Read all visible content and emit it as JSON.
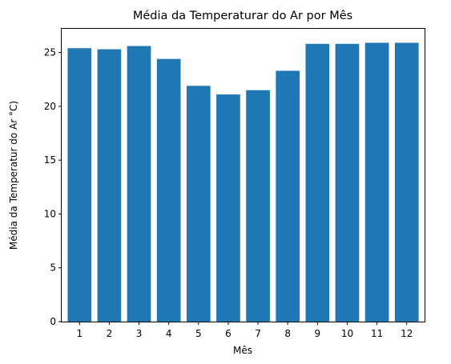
{
  "chart_data": {
    "type": "bar",
    "title": "Média da Temperaturar do Ar por Mês",
    "xlabel": "Mês",
    "ylabel": "Média da Temperatur do Ar °C)",
    "categories": [
      "1",
      "2",
      "3",
      "4",
      "5",
      "6",
      "7",
      "8",
      "9",
      "10",
      "11",
      "12"
    ],
    "values": [
      25.4,
      25.3,
      25.6,
      24.4,
      21.9,
      21.1,
      21.5,
      23.3,
      25.8,
      25.8,
      25.9,
      25.9
    ],
    "ylim": [
      0,
      27.2
    ],
    "yticks": [
      "0",
      "5",
      "10",
      "15",
      "20",
      "25"
    ],
    "bar_color": "#1f77b4",
    "grid": false,
    "legend": "none"
  }
}
